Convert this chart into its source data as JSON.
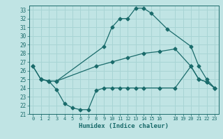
{
  "xlabel": "Humidex (Indice chaleur)",
  "ylabel": "",
  "bg_color": "#c0e4e4",
  "line_color": "#1a6b6b",
  "grid_color": "#a8d4d4",
  "xlim": [
    -0.5,
    23.5
  ],
  "ylim": [
    21,
    33.5
  ],
  "xticks": [
    0,
    1,
    2,
    3,
    4,
    5,
    6,
    7,
    8,
    9,
    10,
    11,
    12,
    13,
    14,
    15,
    16,
    18,
    19,
    20,
    21,
    22,
    23
  ],
  "yticks": [
    21,
    22,
    23,
    24,
    25,
    26,
    27,
    28,
    29,
    30,
    31,
    32,
    33
  ],
  "line1_x": [
    0,
    1,
    2,
    3,
    9,
    10,
    11,
    12,
    13,
    14,
    15,
    17,
    20,
    21,
    22,
    23
  ],
  "line1_y": [
    26.5,
    25.0,
    24.8,
    24.8,
    28.8,
    31.0,
    32.0,
    32.0,
    33.2,
    33.2,
    32.6,
    30.8,
    28.8,
    26.5,
    25.0,
    24.0
  ],
  "line2_x": [
    1,
    2,
    3,
    8,
    10,
    12,
    14,
    16,
    18,
    20,
    21,
    22,
    23
  ],
  "line2_y": [
    25.0,
    24.8,
    24.8,
    26.5,
    27.0,
    27.5,
    28.0,
    28.2,
    28.5,
    26.5,
    25.0,
    24.7,
    24.0
  ],
  "line3_x": [
    0,
    1,
    2,
    3,
    4,
    5,
    6,
    7,
    8,
    9,
    10,
    11,
    12,
    13,
    14,
    16,
    18,
    20,
    21,
    22,
    23
  ],
  "line3_y": [
    26.5,
    25.0,
    24.8,
    23.8,
    22.2,
    21.7,
    21.5,
    21.5,
    23.7,
    24.0,
    24.0,
    24.0,
    24.0,
    24.0,
    24.0,
    24.0,
    24.0,
    26.5,
    25.0,
    24.7,
    24.0
  ],
  "marker": "D",
  "markersize": 2.5
}
